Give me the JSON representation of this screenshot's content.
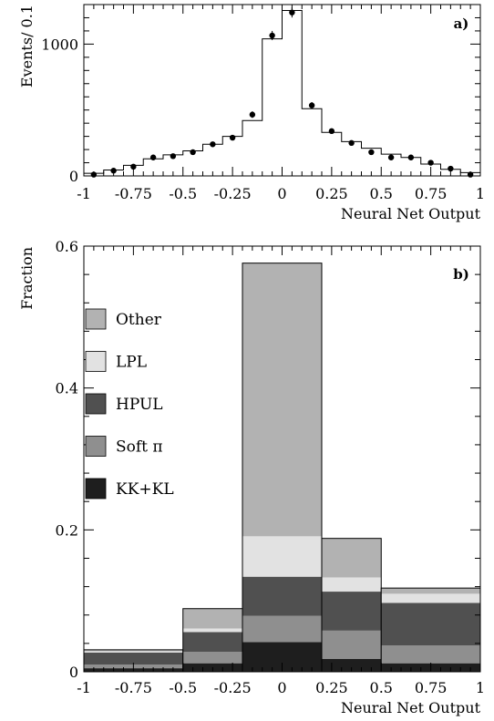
{
  "chart_data": [
    {
      "type": "histogram",
      "panel_label": "a)",
      "xlabel": "Neural Net Output",
      "ylabel": "Events/ 0.1",
      "xlim": [
        -1,
        1
      ],
      "ylim": [
        0,
        1300
      ],
      "xticks": [
        "-1",
        "-0.75",
        "-0.5",
        "-0.25",
        "0",
        "0.25",
        "0.5",
        "0.75",
        "1"
      ],
      "yticks": [
        "0",
        "1000"
      ],
      "bin_width": 0.1,
      "series": [
        {
          "kind": "step-histogram",
          "bin_centers": [
            -0.95,
            -0.85,
            -0.75,
            -0.65,
            -0.55,
            -0.45,
            -0.35,
            -0.25,
            -0.15,
            -0.05,
            0.05,
            0.15,
            0.25,
            0.35,
            0.45,
            0.55,
            0.65,
            0.75,
            0.85,
            0.95
          ],
          "values": [
            20,
            45,
            80,
            130,
            160,
            190,
            240,
            300,
            420,
            1040,
            1255,
            510,
            330,
            260,
            210,
            165,
            140,
            90,
            50,
            25
          ]
        },
        {
          "kind": "points",
          "x": [
            -0.95,
            -0.85,
            -0.75,
            -0.65,
            -0.55,
            -0.45,
            -0.35,
            -0.25,
            -0.15,
            -0.05,
            0.05,
            0.15,
            0.25,
            0.35,
            0.45,
            0.55,
            0.65,
            0.75,
            0.85,
            0.95
          ],
          "y": [
            10,
            40,
            70,
            140,
            150,
            180,
            240,
            290,
            465,
            1065,
            1240,
            535,
            340,
            250,
            180,
            140,
            140,
            100,
            55,
            10
          ],
          "err": [
            5,
            8,
            10,
            14,
            14,
            16,
            18,
            20,
            25,
            35,
            38,
            25,
            20,
            18,
            16,
            14,
            14,
            12,
            9,
            5
          ]
        }
      ]
    },
    {
      "type": "stacked-bar",
      "panel_label": "b)",
      "xlabel": "Neural Net Output",
      "ylabel": "Fraction",
      "xlim": [
        -1,
        1
      ],
      "ylim": [
        0,
        0.6
      ],
      "xticks": [
        "-1",
        "-0.75",
        "-0.5",
        "-0.25",
        "0",
        "0.25",
        "0.5",
        "0.75",
        "1"
      ],
      "yticks": [
        "0",
        "0.2",
        "0.4",
        "0.6"
      ],
      "bin_edges": [
        -1,
        -0.5,
        -0.2,
        0.2,
        0.5,
        1.0
      ],
      "series": [
        {
          "name": "KK+KL",
          "color": "#1e1e1e",
          "values": [
            0.005,
            0.012,
            0.042,
            0.018,
            0.012
          ]
        },
        {
          "name": "Soft π",
          "color": "#8f8f8f",
          "values": [
            0.005,
            0.016,
            0.037,
            0.04,
            0.025
          ]
        },
        {
          "name": "HPUL",
          "color": "#505050",
          "values": [
            0.017,
            0.028,
            0.055,
            0.055,
            0.06
          ]
        },
        {
          "name": "LPL",
          "color": "#e2e2e2",
          "values": [
            0.002,
            0.005,
            0.057,
            0.02,
            0.013
          ]
        },
        {
          "name": "Other",
          "color": "#b2b2b2",
          "values": [
            0.002,
            0.028,
            0.385,
            0.055,
            0.008
          ]
        }
      ],
      "legend_order": [
        "Other",
        "LPL",
        "HPUL",
        "Soft π",
        "KK+KL"
      ]
    }
  ]
}
